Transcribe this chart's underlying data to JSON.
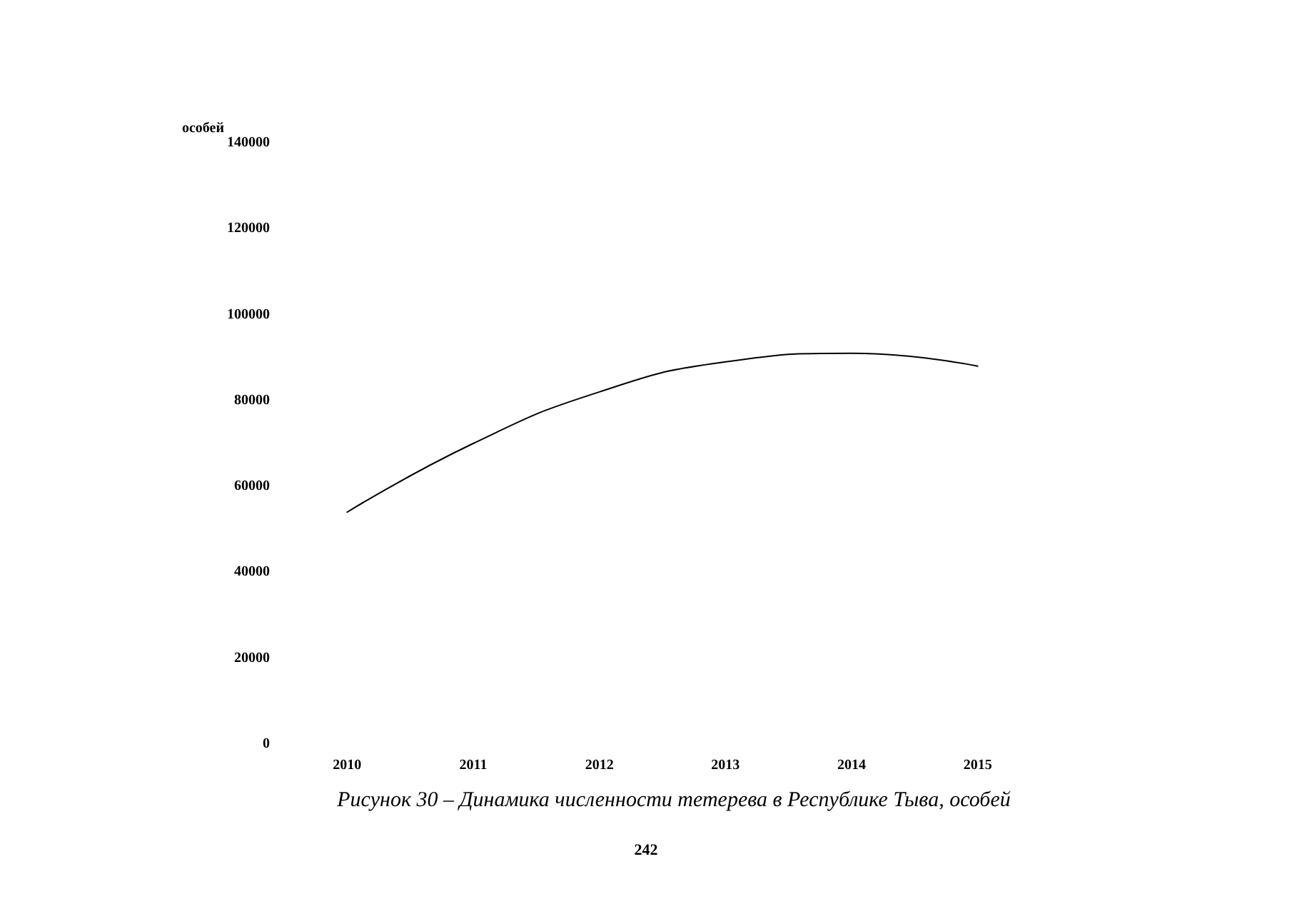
{
  "chart_data": {
    "type": "line",
    "title": "Рисунок 30 – Динамика численности тетерева в Республике Тыва, особей",
    "ylabel": "особей",
    "categories": [
      "2010",
      "2011",
      "2012",
      "2013",
      "2014",
      "2015"
    ],
    "series": [
      {
        "color": "#000000",
        "values": [
          54000,
          70000,
          82000,
          89000,
          91000,
          88000
        ]
      }
    ],
    "ylim": [
      0,
      140000
    ],
    "yticks": [
      0,
      20000,
      40000,
      60000,
      80000,
      100000,
      120000,
      140000
    ],
    "grid": false,
    "marker": "none",
    "line_style": "solid",
    "annotations": [
      "242"
    ]
  }
}
